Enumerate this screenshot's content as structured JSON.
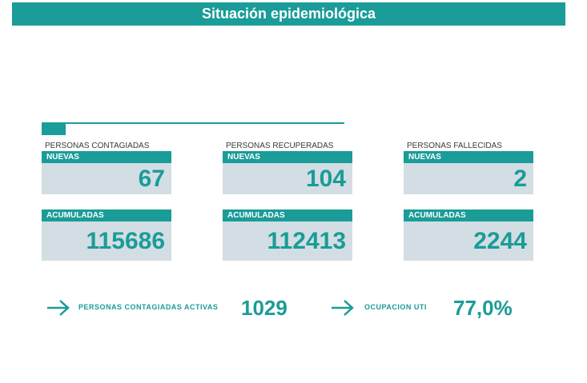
{
  "banner": {
    "title": "Situación epidemiológica"
  },
  "cards": [
    {
      "title": "PERSONAS CONTAGIADAS",
      "nuevas_label": "NUEVAS",
      "nuevas_value": "67",
      "acumuladas_label": "ACUMULADAS",
      "acumuladas_value": "115686"
    },
    {
      "title": "PERSONAS RECUPERADAS",
      "nuevas_label": "NUEVAS",
      "nuevas_value": "104",
      "acumuladas_label": "ACUMULADAS",
      "acumuladas_value": "112413"
    },
    {
      "title": "PERSONAS FALLECIDAS",
      "nuevas_label": "NUEVAS",
      "nuevas_value": "2",
      "acumuladas_label": "ACUMULADAS",
      "acumuladas_value": "2244"
    }
  ],
  "summary": {
    "activas_label": "PERSONAS CONTAGIADAS ACTIVAS",
    "activas_value": "1029",
    "uti_label": "OCUPACION UTI",
    "uti_value": "77,0%"
  },
  "icons": {
    "arrow": "arrow-right-icon"
  },
  "colors": {
    "accent": "#1a9c98",
    "card_bg": "#d3dde4"
  }
}
